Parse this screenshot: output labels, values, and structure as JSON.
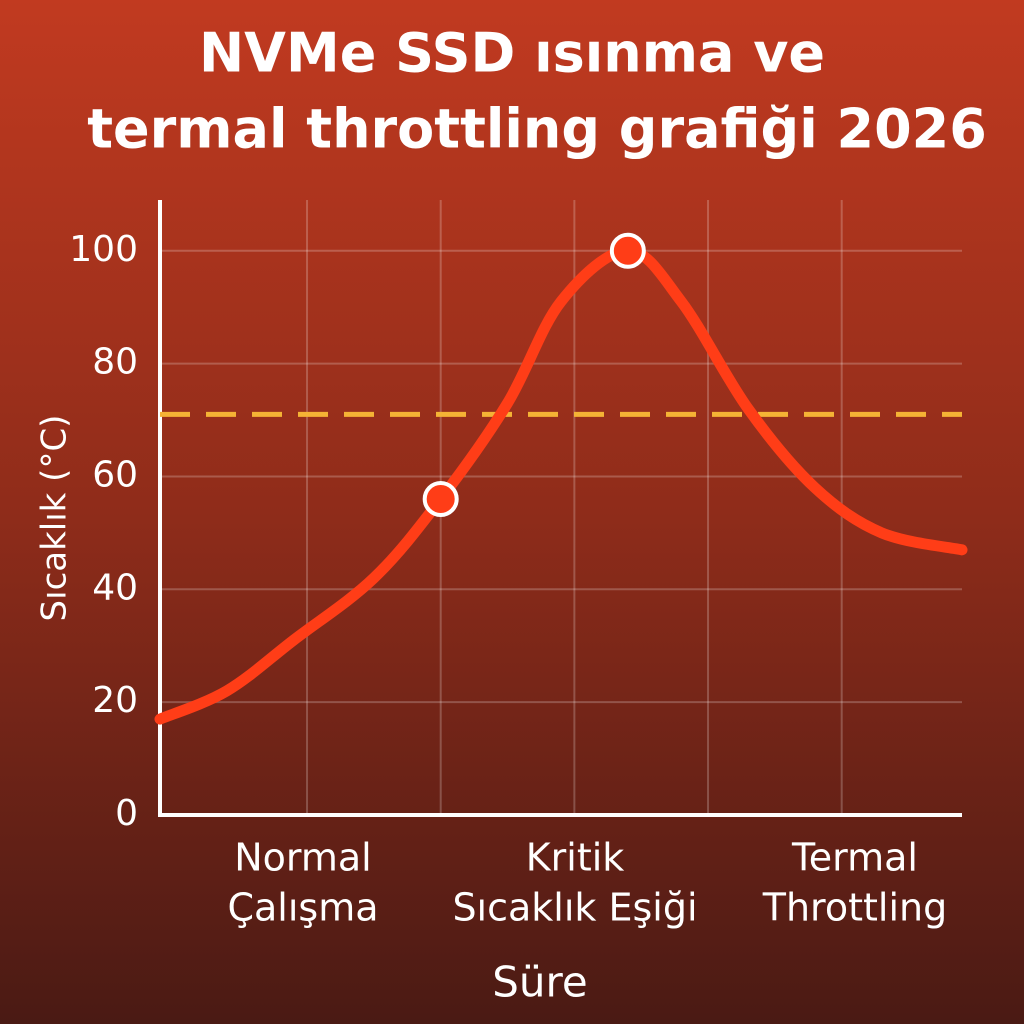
{
  "chart_data": {
    "type": "line",
    "title": [
      "NVMe SSD ısınma ve",
      "termal throttling grafiği 2026"
    ],
    "y_label": "Sıcaklık (°C)",
    "x_label": "Süre",
    "categories": [
      [
        "Normal",
        "Çalışma"
      ],
      [
        "Kritik",
        "Sıcaklık Eşiği"
      ],
      [
        "Termal",
        "Throttling"
      ]
    ],
    "x": [
      0,
      0.5,
      1.0,
      1.6,
      2.1,
      2.6,
      3.0,
      3.5,
      3.9,
      4.4,
      4.9,
      5.4,
      6.0
    ],
    "values": [
      17,
      22,
      31,
      42,
      56,
      73,
      91,
      100,
      91,
      72,
      58,
      50,
      47
    ],
    "color": "#ff3d17",
    "points": {
      "x": [
        2.1,
        3.5
      ],
      "values": [
        56,
        100
      ]
    },
    "threshold": 71,
    "threshold_color": "#f5b335",
    "xlim": [
      0,
      6
    ],
    "xticks": [
      1.1,
      2.1,
      3.1,
      4.1,
      5.1
    ],
    "ylim": [
      0,
      109
    ],
    "yticks": [
      0,
      20,
      40,
      60,
      80,
      100
    ],
    "grid": true
  }
}
